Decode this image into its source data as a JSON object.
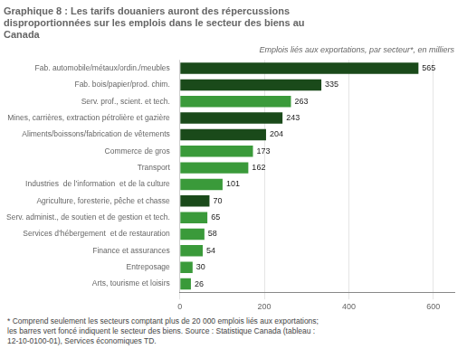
{
  "chart_data": {
    "type": "bar",
    "orientation": "horizontal",
    "title": [
      "Graphique 8 : Les tarifs douaniers auront des répercussions",
      "disproportionnées sur les emplois dans le secteur des biens au",
      "Canada"
    ],
    "subtitle": "Emplois liés aux exportations, par secteur*, en milliers",
    "categories": [
      "Arts, tourisme et loisirs",
      "Entreposage",
      "Finance et assurances",
      "Services d’hébergement  et de restauration",
      "Serv. administ., de soutien et de gestion et tech.",
      "Agriculture, foresterie, pêche et chasse",
      "Industries  de l’information  et de la culture",
      "Transport",
      "Commerce de gros",
      "Aliments/boissons/fabrication de vêtements",
      "Mines, carrières, extraction pétrolière et gazière",
      "Serv. prof., scient. et tech.",
      "Fab. bois/papier/prod. chim.",
      "Fab. automobile/métaux/ordin./meubles"
    ],
    "values": [
      26,
      30,
      54,
      58,
      65,
      70,
      101,
      162,
      173,
      204,
      243,
      263,
      335,
      565
    ],
    "colors": [
      "#3a9a3a",
      "#3a9a3a",
      "#3a9a3a",
      "#3a9a3a",
      "#3a9a3a",
      "#1a4a1a",
      "#3a9a3a",
      "#3a9a3a",
      "#3a9a3a",
      "#1a4a1a",
      "#1a4a1a",
      "#3a9a3a",
      "#1a4a1a",
      "#1a4a1a"
    ],
    "xlim": [
      0,
      650
    ],
    "xticks": [
      0,
      200,
      400,
      600
    ],
    "grid": true,
    "data_labels": true,
    "annotations": [
      "* Comprend seulement les secteurs comptant plus de 20 000 emplois liés aux exportations;\nles barres vert foncé indiquent le secteur des biens. Source : Statistique Canada (tableau :\n12-10-0100-01), Services économiques TD."
    ]
  }
}
